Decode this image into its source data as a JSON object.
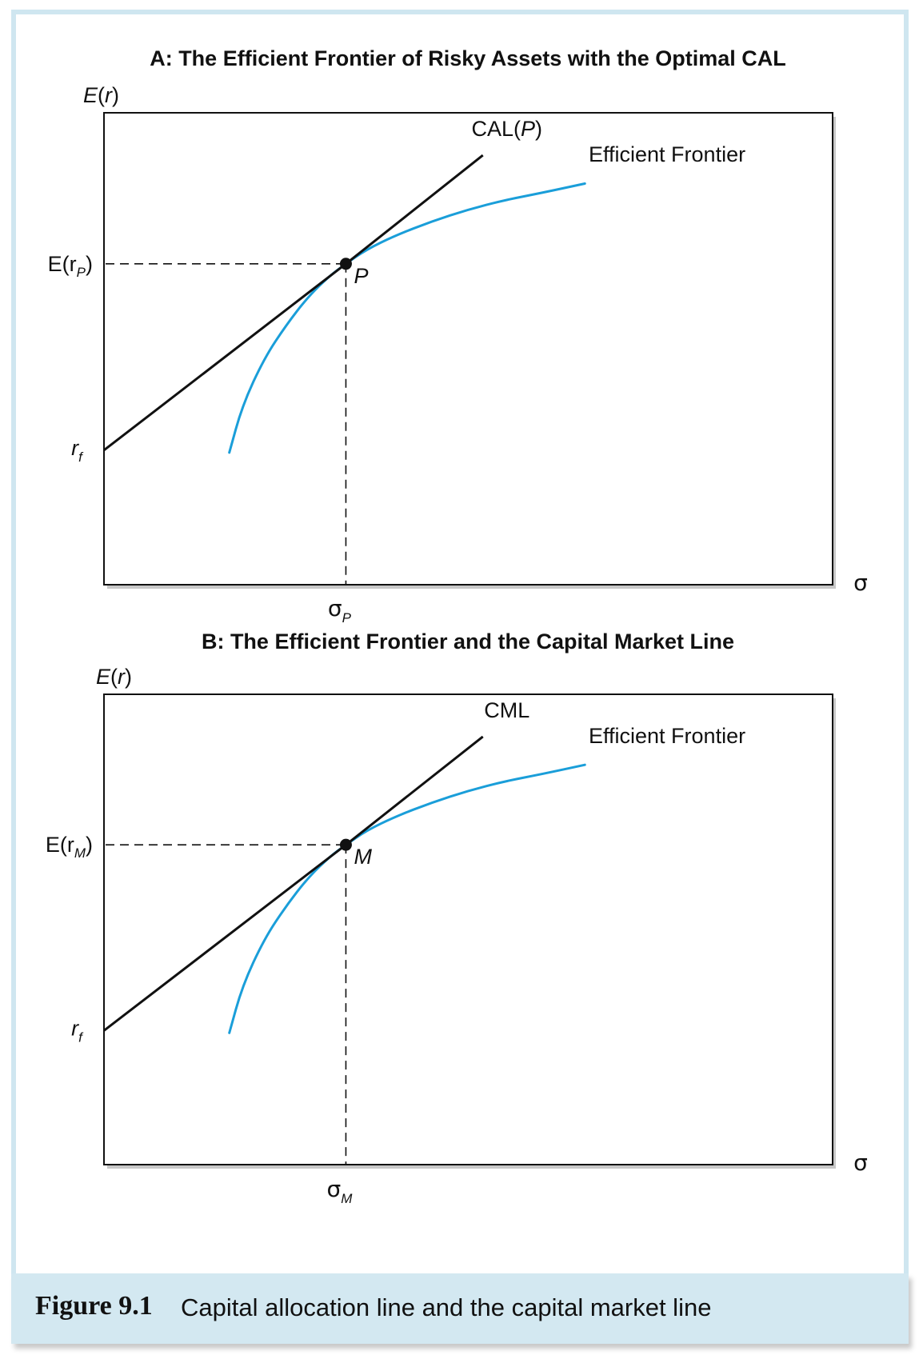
{
  "caption": {
    "figure_label": "Figure 9.1",
    "text": "Capital allocation line and the capital market line"
  },
  "colors": {
    "frame": "#cfe6f0",
    "caption_bg": "#d3e8f1",
    "frontier": "#1a9ed9",
    "line": "#111111"
  },
  "chart_data": [
    {
      "type": "line",
      "title": "A: The Efficient Frontier of Risky Assets with the Optimal CAL",
      "ylabel": {
        "main": "E",
        "paren_open": "(",
        "var": "r",
        "paren_close": ")"
      },
      "xlabel": "σ",
      "xlim": [
        0,
        1
      ],
      "ylim": [
        0,
        1
      ],
      "grid": false,
      "legend": "none",
      "tangent_point": {
        "name": "P",
        "x": 0.332,
        "y": 0.68
      },
      "rf": {
        "name": "r",
        "sub": "f",
        "y": 0.285
      },
      "y_tick": {
        "main": "E(r",
        "sub": "P",
        "close": ")"
      },
      "x_tick": {
        "main": "σ",
        "sub": "P"
      },
      "series": [
        {
          "name": "CAL(P)",
          "label_main": "CAL(",
          "label_ital": "P",
          "label_close": ")",
          "x": [
            0,
            0.332,
            0.52
          ],
          "y": [
            0.285,
            0.68,
            0.91
          ]
        },
        {
          "name": "Efficient Frontier",
          "x": [
            0.172,
            0.19,
            0.22,
            0.25,
            0.28,
            0.31,
            0.332,
            0.36,
            0.4,
            0.45,
            0.5,
            0.55,
            0.6,
            0.66
          ],
          "y": [
            0.28,
            0.38,
            0.48,
            0.55,
            0.61,
            0.655,
            0.68,
            0.71,
            0.74,
            0.77,
            0.795,
            0.815,
            0.83,
            0.85
          ]
        }
      ]
    },
    {
      "type": "line",
      "title": "B: The Efficient Frontier and the Capital Market Line",
      "ylabel": {
        "main": "E",
        "paren_open": "(",
        "var": "r",
        "paren_close": ")"
      },
      "xlabel": "σ",
      "xlim": [
        0,
        1
      ],
      "ylim": [
        0,
        1
      ],
      "grid": false,
      "legend": "none",
      "tangent_point": {
        "name": "M",
        "x": 0.332,
        "y": 0.68
      },
      "rf": {
        "name": "r",
        "sub": "f",
        "y": 0.285
      },
      "y_tick": {
        "main": "E(r",
        "sub": "M",
        "close": ")"
      },
      "x_tick": {
        "main": "σ",
        "sub": "M"
      },
      "series": [
        {
          "name": "CML",
          "label_main": "CML",
          "label_ital": "",
          "label_close": "",
          "x": [
            0,
            0.332,
            0.52
          ],
          "y": [
            0.285,
            0.68,
            0.91
          ]
        },
        {
          "name": "Efficient Frontier",
          "x": [
            0.172,
            0.19,
            0.22,
            0.25,
            0.28,
            0.31,
            0.332,
            0.36,
            0.4,
            0.45,
            0.5,
            0.55,
            0.6,
            0.66
          ],
          "y": [
            0.28,
            0.38,
            0.48,
            0.55,
            0.61,
            0.655,
            0.68,
            0.71,
            0.74,
            0.77,
            0.795,
            0.815,
            0.83,
            0.85
          ]
        }
      ]
    }
  ]
}
